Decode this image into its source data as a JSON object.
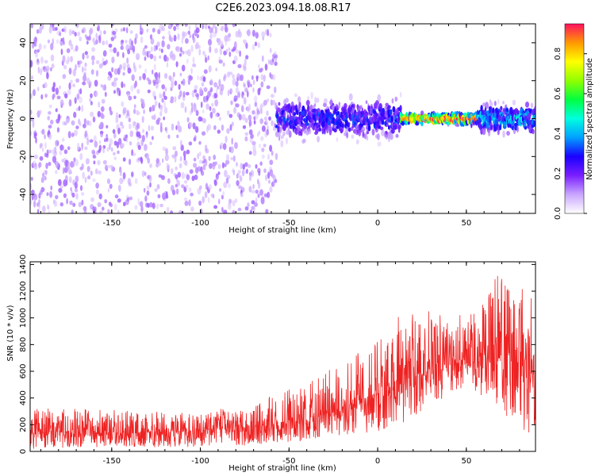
{
  "title": "C2E6.2023.094.18.08.R17",
  "colors": {
    "snr_trace": "#ee2222",
    "axis": "#000000",
    "background": "#ffffff"
  },
  "chart_data": [
    {
      "type": "heatmap",
      "title": "C2E6.2023.094.18.08.R17",
      "xlabel": "Height of straight line (km)",
      "ylabel": "Frequency (Hz)",
      "xlim": [
        -196,
        89
      ],
      "ylim": [
        -50,
        50
      ],
      "x_ticks": [
        -150,
        -100,
        -50,
        0,
        50
      ],
      "y_ticks": [
        -40,
        -20,
        0,
        20,
        40
      ],
      "grid": false,
      "colorbar": {
        "label": "Normalized spectral amplitude",
        "range": [
          0,
          0.95
        ],
        "ticks": [
          0.0,
          0.2,
          0.4,
          0.6,
          0.8
        ],
        "colormap": [
          "#ffffff",
          "#c9a6ff",
          "#7a1fff",
          "#1a00ff",
          "#00a0ff",
          "#00ffe0",
          "#00ff40",
          "#90ff00",
          "#ffff00",
          "#ff9900",
          "#ff1060"
        ]
      },
      "regions": [
        {
          "x": [
            -196,
            -58
          ],
          "freq_spread": [
            -50,
            50
          ],
          "amplitude": 0.12,
          "description": "broadband noise"
        },
        {
          "x": [
            -58,
            12
          ],
          "freq_center": 0,
          "freq_halfwidth": 8,
          "amplitude": 0.3
        },
        {
          "x": [
            12,
            55
          ],
          "freq_center": 0,
          "freq_halfwidth": 2,
          "amplitude": 0.9
        },
        {
          "x": [
            55,
            89
          ],
          "freq_center": 0,
          "freq_halfwidth": 6,
          "amplitude": 0.4
        }
      ]
    },
    {
      "type": "line",
      "xlabel": "Height of straight line (km)",
      "ylabel": "SNR (10 * v/v)",
      "xlim": [
        -196,
        89
      ],
      "ylim": [
        0,
        1420
      ],
      "x_ticks": [
        -150,
        -100,
        -50,
        0,
        50
      ],
      "y_ticks": [
        0,
        200,
        400,
        600,
        800,
        1000,
        1200,
        1400
      ],
      "grid": false,
      "envelope": {
        "x": [
          -196,
          -150,
          -100,
          -70,
          -55,
          -40,
          -20,
          0,
          10,
          20,
          30,
          40,
          50,
          60,
          70,
          80,
          89
        ],
        "low": [
          20,
          30,
          30,
          40,
          60,
          80,
          120,
          150,
          180,
          250,
          350,
          420,
          430,
          420,
          300,
          120,
          40
        ],
        "mean": [
          150,
          140,
          150,
          180,
          200,
          250,
          330,
          440,
          500,
          560,
          620,
          650,
          660,
          680,
          700,
          650,
          550
        ],
        "high": [
          330,
          310,
          300,
          350,
          450,
          500,
          700,
          850,
          1000,
          1050,
          1050,
          1000,
          1050,
          1150,
          1380,
          1250,
          1200
        ]
      }
    }
  ]
}
